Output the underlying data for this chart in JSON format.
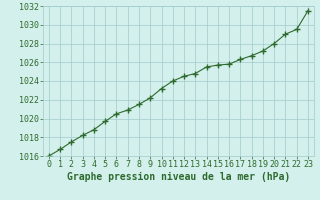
{
  "x": [
    0,
    1,
    2,
    3,
    4,
    5,
    6,
    7,
    8,
    9,
    10,
    11,
    12,
    13,
    14,
    15,
    16,
    17,
    18,
    19,
    20,
    21,
    22,
    23
  ],
  "y": [
    1016.0,
    1016.7,
    1017.5,
    1018.2,
    1018.8,
    1019.7,
    1020.5,
    1020.9,
    1021.5,
    1022.2,
    1023.2,
    1024.0,
    1024.5,
    1024.8,
    1025.5,
    1025.7,
    1025.8,
    1026.3,
    1026.7,
    1027.2,
    1028.0,
    1029.0,
    1029.5,
    1031.5
  ],
  "line_color": "#2d6a2d",
  "marker": "+",
  "bg_color": "#d4f0ec",
  "grid_color": "#a0cccc",
  "xlabel": "Graphe pression niveau de la mer (hPa)",
  "ylim": [
    1016,
    1032
  ],
  "yticks": [
    1016,
    1018,
    1020,
    1022,
    1024,
    1026,
    1028,
    1030,
    1032
  ],
  "xlim": [
    -0.5,
    23.5
  ],
  "xticks": [
    0,
    1,
    2,
    3,
    4,
    5,
    6,
    7,
    8,
    9,
    10,
    11,
    12,
    13,
    14,
    15,
    16,
    17,
    18,
    19,
    20,
    21,
    22,
    23
  ],
  "xlabel_color": "#2d6a2d",
  "xlabel_fontsize": 7,
  "tick_fontsize": 6,
  "tick_color": "#2d6a2d",
  "linewidth": 0.8,
  "markersize": 4
}
